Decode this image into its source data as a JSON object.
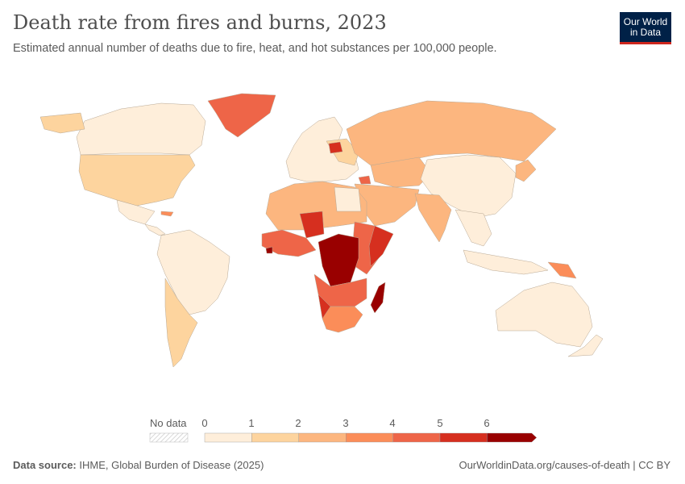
{
  "title": "Death rate from fires and burns, 2023",
  "subtitle": "Estimated annual number of deaths due to fire, heat, and hot substances per 100,000 people.",
  "logo": {
    "line1": "Our World",
    "line2": "in Data"
  },
  "legend": {
    "no_data_label": "No data",
    "ticks": [
      "0",
      "1",
      "2",
      "3",
      "4",
      "5",
      "6"
    ],
    "bins": [
      {
        "range": "0-1",
        "color": "#feeeda"
      },
      {
        "range": "1-2",
        "color": "#fdd49e"
      },
      {
        "range": "2-3",
        "color": "#fcb67f"
      },
      {
        "range": "3-4",
        "color": "#fb8d59"
      },
      {
        "range": "4-5",
        "color": "#ee6548"
      },
      {
        "range": "5-6",
        "color": "#d62f1f"
      },
      {
        "range": "6+",
        "color": "#990000"
      }
    ]
  },
  "footer": {
    "source_label": "Data source:",
    "source_text": "IHME, Global Burden of Disease (2025)",
    "right_text": "OurWorldinData.org/causes-of-death | CC BY"
  }
}
